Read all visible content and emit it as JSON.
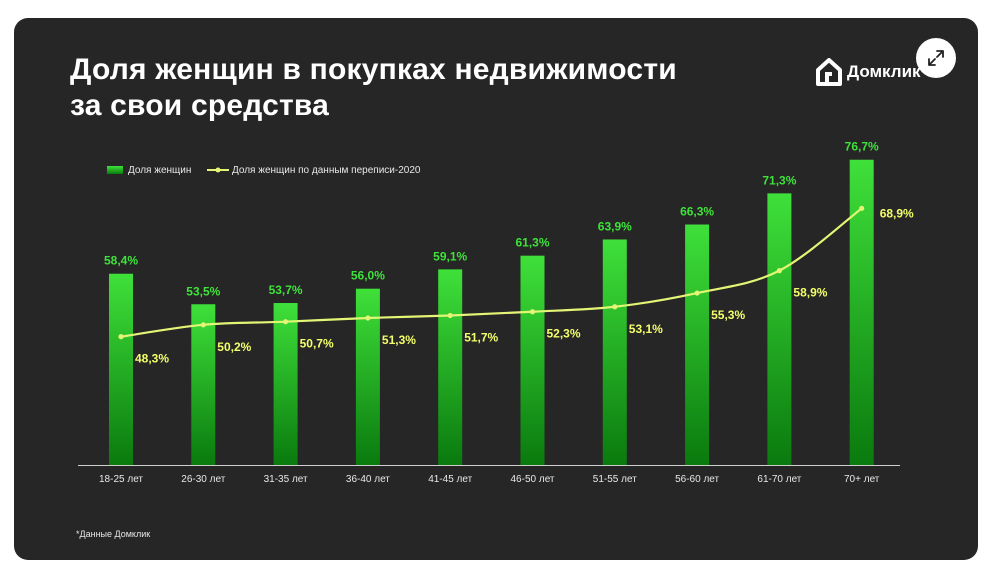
{
  "header": {
    "title_line1": "Доля женщин в покупках недвижимости",
    "title_line2": "за свои средства",
    "logo_text": "Домклик"
  },
  "footnote": "*Данные Домклик",
  "colors": {
    "background": "#262626",
    "bar_top": "#3fe03a",
    "bar_bottom": "#0a7a0e",
    "line": "#e4f575",
    "bar_label": "#3ee23a",
    "line_label": "#f3ff6a",
    "text": "#ffffff"
  },
  "chart_data": {
    "type": "bar",
    "categories": [
      "18-25 лет",
      "26-30 лет",
      "31-35 лет",
      "36-40 лет",
      "41-45 лет",
      "46-50 лет",
      "51-55 лет",
      "56-60 лет",
      "61-70 лет",
      "70+ лет"
    ],
    "series": [
      {
        "name": "Доля женщин",
        "type": "bar",
        "values": [
          58.4,
          53.5,
          53.7,
          56.0,
          59.1,
          61.3,
          63.9,
          66.3,
          71.3,
          76.7
        ],
        "labels": [
          "58,4%",
          "53,5%",
          "53,7%",
          "56,0%",
          "59,1%",
          "61,3%",
          "63,9%",
          "66,3%",
          "71,3%",
          "76,7%"
        ]
      },
      {
        "name": "Доля женщин по данным переписи-2020",
        "type": "line",
        "values": [
          48.3,
          50.2,
          50.7,
          51.3,
          51.7,
          52.3,
          53.1,
          55.3,
          58.9,
          68.9
        ],
        "labels": [
          "48,3%",
          "50,2%",
          "50,7%",
          "51,3%",
          "51,7%",
          "52,3%",
          "53,1%",
          "55,3%",
          "58,9%",
          "68,9%"
        ]
      }
    ],
    "ylim": [
      0,
      80
    ],
    "grid": false,
    "legend": "top-left",
    "xlabel": "",
    "ylabel": "",
    "title": "Доля женщин в покупках недвижимости за свои средства"
  }
}
